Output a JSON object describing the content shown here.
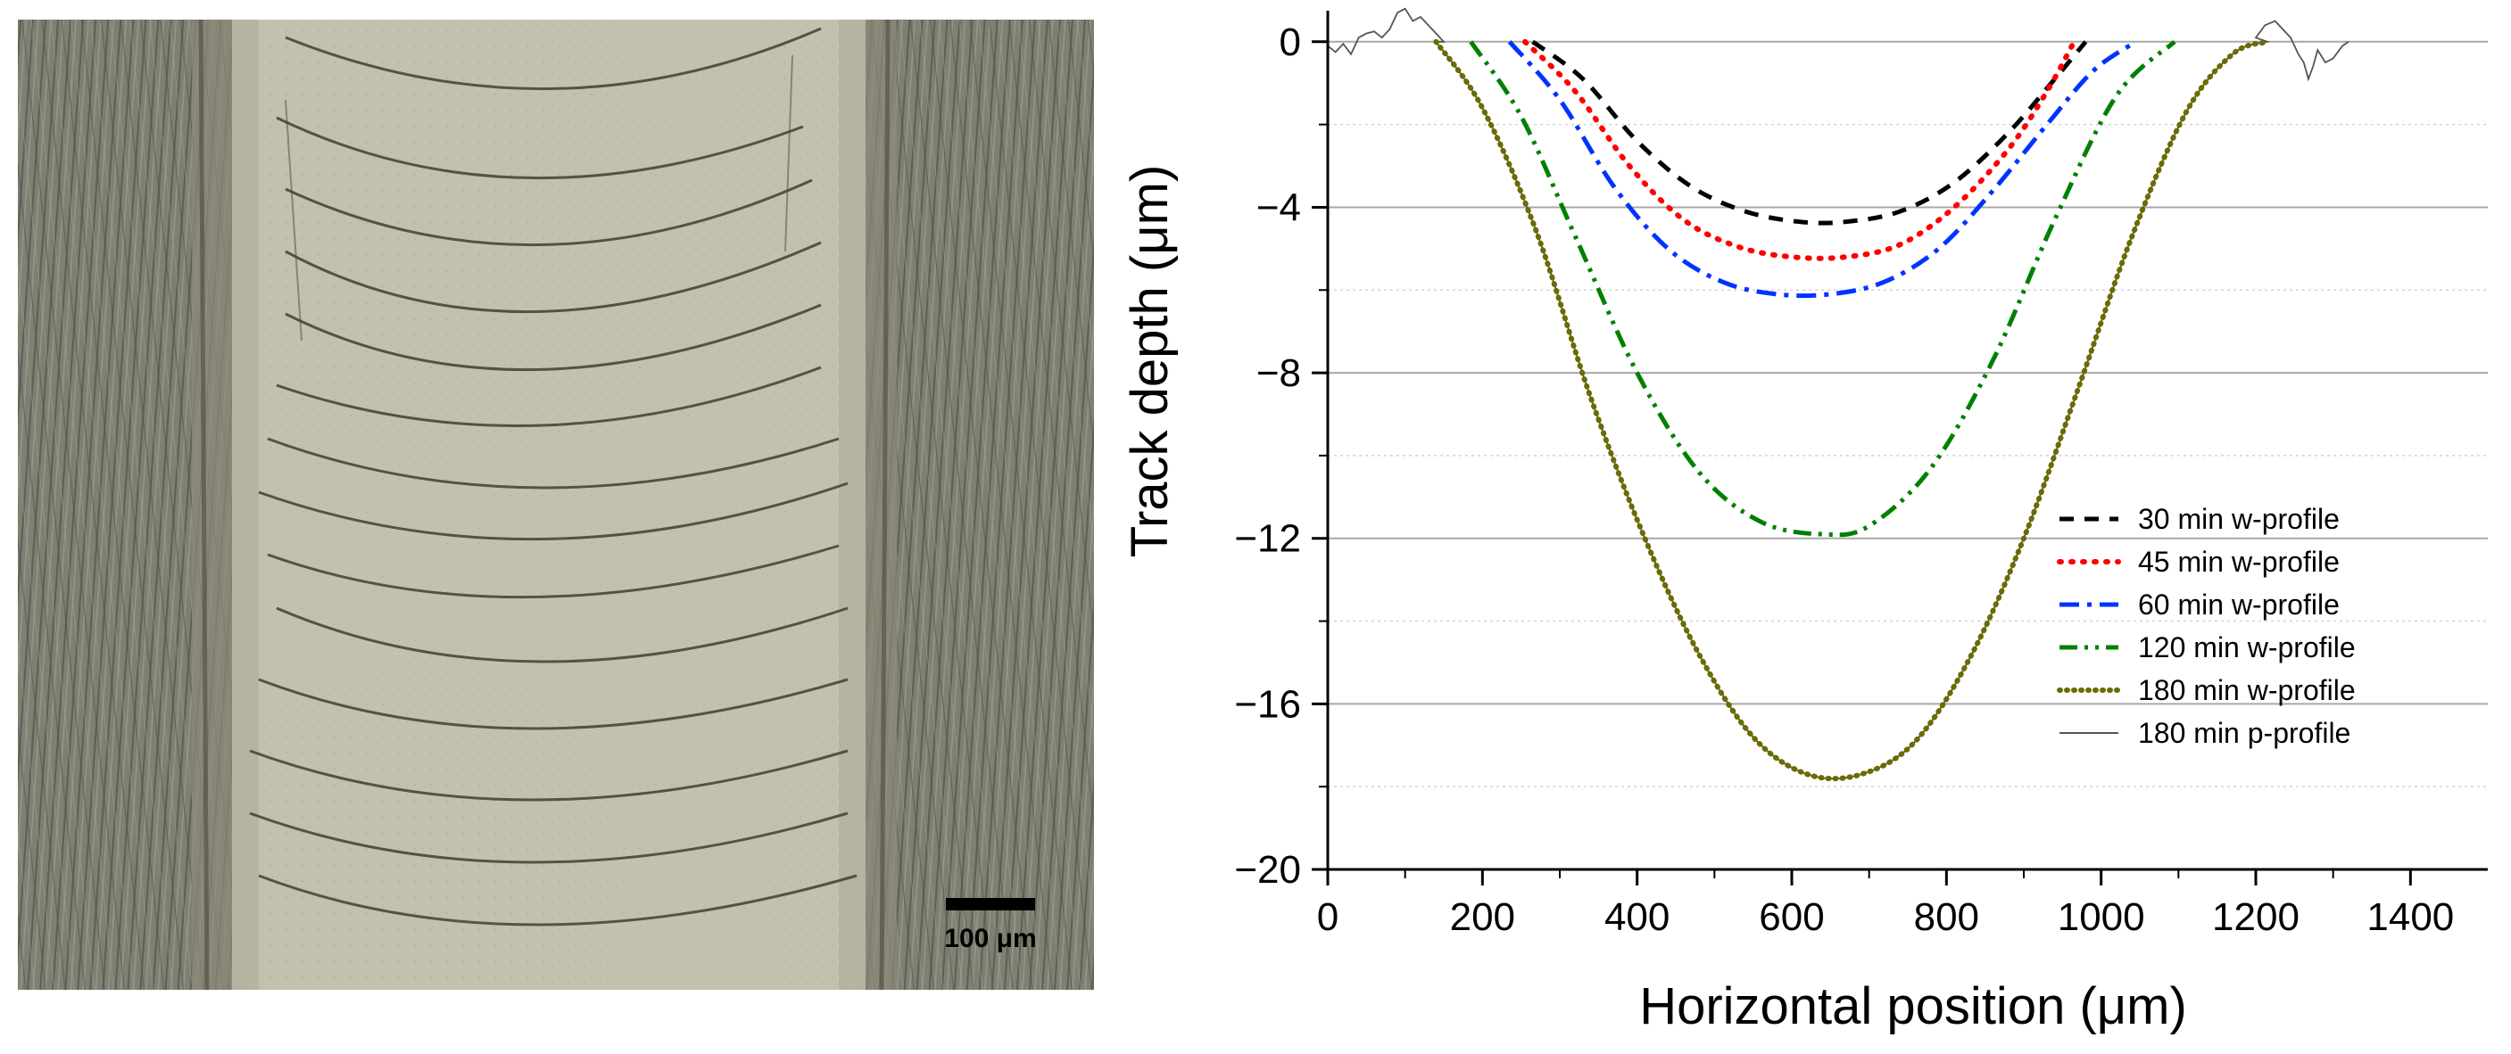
{
  "micrograph": {
    "scale_bar_label": "100 μm"
  },
  "chart_data": {
    "type": "line",
    "title": "",
    "xlabel": "Horizontal position (μm)",
    "ylabel": "Track depth (μm)",
    "xlim": [
      0,
      1500
    ],
    "ylim": [
      -20,
      1
    ],
    "x_ticks": [
      0,
      200,
      400,
      600,
      800,
      1000,
      1200,
      1400
    ],
    "x_tick_labels": [
      "0",
      "200",
      "400",
      "600",
      "800",
      "1000",
      "1200",
      "1400"
    ],
    "y_ticks": [
      0,
      -4,
      -8,
      -12,
      -16,
      -20
    ],
    "y_tick_labels": [
      "0",
      "−4",
      "−8",
      "−12",
      "−16",
      "−20"
    ],
    "grid": "horizontal",
    "legend_position": "bottom-right",
    "series": [
      {
        "name": "30 min w-profile",
        "style": "dash",
        "color": "#000000",
        "width": 5,
        "x": [
          265,
          330,
          400,
          470,
          540,
          610,
          670,
          740,
          810,
          880,
          940,
          980
        ],
        "y": [
          0,
          -0.9,
          -2.4,
          -3.5,
          -4.1,
          -4.35,
          -4.35,
          -4.1,
          -3.4,
          -2.2,
          -0.9,
          0
        ]
      },
      {
        "name": "45 min w-profile",
        "style": "dot",
        "color": "#ff0000",
        "width": 6,
        "x": [
          255,
          320,
          390,
          460,
          530,
          600,
          670,
          740,
          810,
          880,
          930,
          965
        ],
        "y": [
          0,
          -1.2,
          -3.0,
          -4.3,
          -4.95,
          -5.2,
          -5.2,
          -4.9,
          -4.0,
          -2.6,
          -1.2,
          0
        ]
      },
      {
        "name": "60 min w-profile",
        "style": "dashdot",
        "color": "#0033ff",
        "width": 5,
        "x": [
          235,
          300,
          370,
          440,
          510,
          580,
          650,
          720,
          790,
          860,
          930,
          990,
          1045
        ],
        "y": [
          0,
          -1.4,
          -3.5,
          -5.0,
          -5.8,
          -6.1,
          -6.1,
          -5.8,
          -5.0,
          -3.6,
          -2.0,
          -0.7,
          0
        ]
      },
      {
        "name": "120 min w-profile",
        "style": "dashdotdot",
        "color": "#008000",
        "width": 5,
        "x": [
          185,
          250,
          320,
          400,
          480,
          560,
          640,
          700,
          780,
          860,
          940,
          1020,
          1095
        ],
        "y": [
          0,
          -1.8,
          -4.7,
          -8.0,
          -10.4,
          -11.6,
          -11.9,
          -11.7,
          -10.3,
          -7.7,
          -4.3,
          -1.3,
          0
        ]
      },
      {
        "name": "180 min w-profile",
        "style": "dotted",
        "color": "#6b6b00",
        "width": 6,
        "x": [
          140,
          200,
          270,
          340,
          410,
          480,
          550,
          620,
          690,
          760,
          830,
          900,
          970,
          1040,
          1110,
          1170,
          1215
        ],
        "y": [
          0,
          -1.6,
          -4.6,
          -8.6,
          -12.0,
          -14.8,
          -16.8,
          -17.7,
          -17.7,
          -16.9,
          -14.9,
          -12.0,
          -8.4,
          -4.7,
          -1.7,
          -0.3,
          0
        ]
      },
      {
        "name": "180 min p-profile",
        "style": "solid",
        "color": "#555555",
        "width": 1.8,
        "x": [
          0,
          10,
          20,
          30,
          40,
          50,
          60,
          70,
          80,
          90,
          100,
          110,
          120,
          130,
          140,
          150,
          1200,
          1212,
          1225,
          1235,
          1245,
          1255,
          1262,
          1268,
          1274,
          1280,
          1290,
          1300,
          1312,
          1320
        ],
        "y": [
          -0.1,
          -0.25,
          -0.05,
          -0.3,
          0.1,
          0.2,
          0.25,
          0.1,
          0.3,
          0.7,
          0.8,
          0.5,
          0.6,
          0.4,
          0.2,
          0.0,
          0.1,
          0.4,
          0.5,
          0.3,
          0.1,
          -0.3,
          -0.5,
          -0.9,
          -0.6,
          -0.2,
          -0.5,
          -0.4,
          -0.1,
          0.0
        ]
      }
    ]
  }
}
